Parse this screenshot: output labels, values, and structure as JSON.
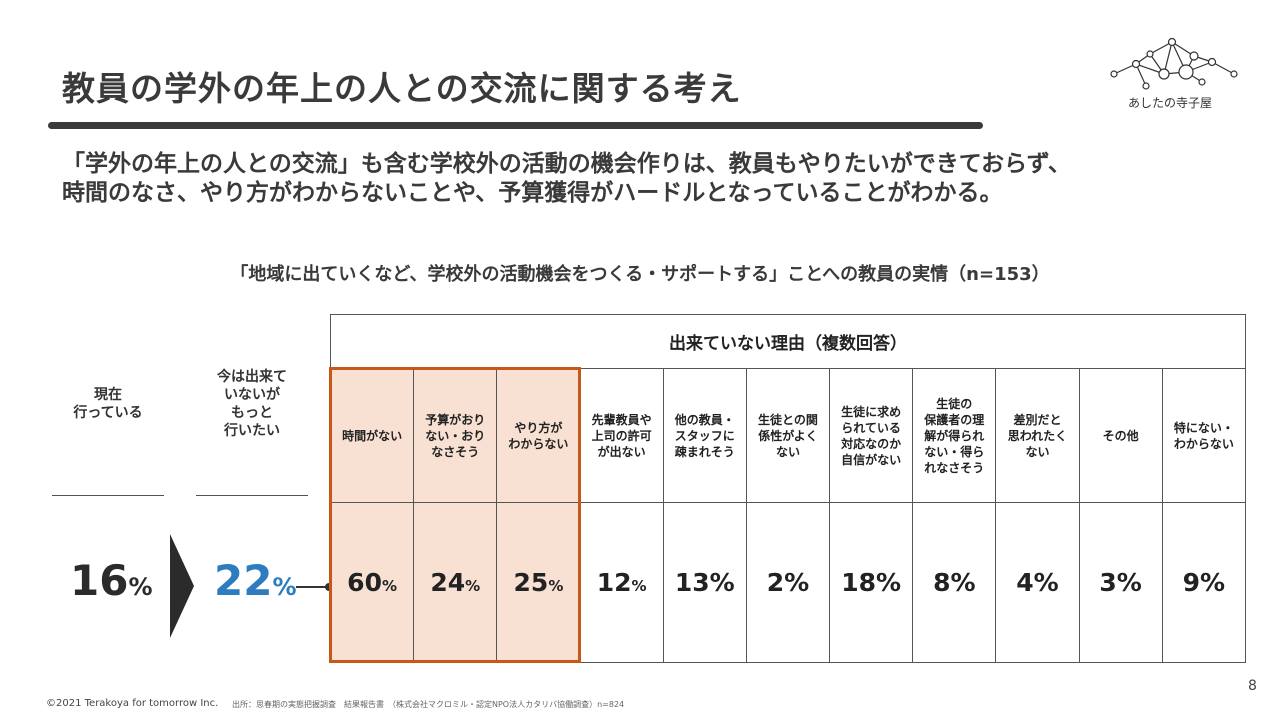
{
  "title": "教員の学外の年上の人との交流に関する考え",
  "logo": {
    "text": "あしたの寺子屋"
  },
  "lead": {
    "line1": "「学外の年上の人との交流」も含む学校外の活動の機会作りは、教員もやりたいができておらず、",
    "line2": "時間のなさ、やり方がわからないことや、予算獲得がハードルとなっていることがわかる。"
  },
  "subtitle": "「地域に出ていくなど、学校外の活動機会をつくる・サポートする」ことへの教員の実情（n=153）",
  "current": {
    "label": "現在\n行っている",
    "value": "16",
    "unit": "%"
  },
  "want": {
    "label": "今は出来て\nいないが\nもっと\n行いたい",
    "value": "22",
    "unit": "%"
  },
  "reasons": {
    "header": "出来ていない理由（複数回答）",
    "items": [
      {
        "label": "時間がない",
        "value": "60",
        "unit": "%"
      },
      {
        "label": "予算がおり\nない・おり\nなさそう",
        "value": "24",
        "unit": "%"
      },
      {
        "label": "やり方が\nわからない",
        "value": "25",
        "unit": "%"
      },
      {
        "label": "先輩教員や\n上司の許可\nが出ない",
        "value": "12",
        "unit": "%"
      },
      {
        "label": "他の教員・\nスタッフに\n疎まれそう",
        "value": "13%",
        "unit": ""
      },
      {
        "label": "生徒との関\n係性がよく\nない",
        "value": "2%",
        "unit": ""
      },
      {
        "label": "生徒に求め\nられている\n対応なのか\n自信がない",
        "value": "18%",
        "unit": ""
      },
      {
        "label": "生徒の\n保護者の理\n解が得られ\nない・得ら\nれなさそう",
        "value": "8%",
        "unit": ""
      },
      {
        "label": "差別だと\n思われたく\nない",
        "value": "4%",
        "unit": ""
      },
      {
        "label": "その他",
        "value": "3%",
        "unit": ""
      },
      {
        "label": "特にない・\nわからない",
        "value": "9%",
        "unit": ""
      }
    ]
  },
  "footer": {
    "page": "8",
    "copyright": "©2021 Terakoya for tomorrow Inc.",
    "source": "出所：思春期の実態把握調査　結果報告書　（株式会社マクロミル・認定NPO法人カタリバ協働調査）n=824"
  },
  "colors": {
    "accent_blue": "#2e7cc0",
    "highlight_fill": "#f8e0d3",
    "highlight_border": "#c8571a",
    "dark": "#2b2b2b"
  }
}
